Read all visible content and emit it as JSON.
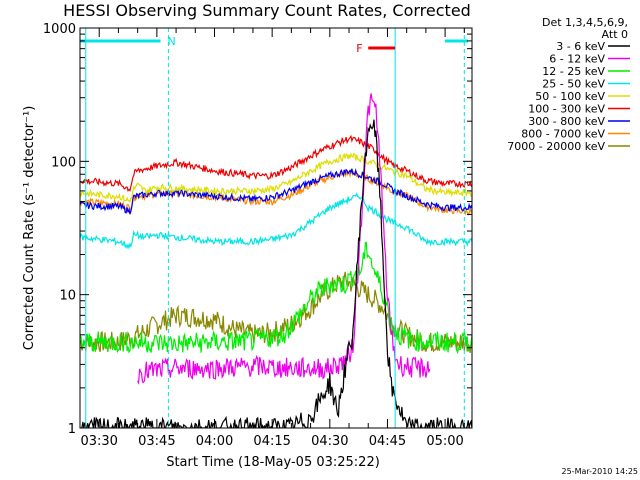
{
  "chart_data": {
    "type": "line",
    "title": "HESSI Observing Summary Count Rates, Corrected",
    "xlabel": "Start Time (18-May-05 03:25:22)",
    "ylabel": "Corrected Count Rate (s⁻¹ detector⁻¹)",
    "ylim": [
      1,
      1000
    ],
    "yscale": "log",
    "xlim_minutes": [
      -5,
      97
    ],
    "x_tick_labels": [
      "03:30",
      "03:45",
      "04:00",
      "04:15",
      "04:30",
      "04:45",
      "05:00"
    ],
    "x_ticks_minutes": [
      0,
      15,
      30,
      45,
      60,
      75,
      90
    ],
    "y_tick_labels": [
      "1",
      "10",
      "100",
      "1000"
    ],
    "y_ticks": [
      1,
      10,
      100,
      1000
    ],
    "legend_header": [
      "Det 1,3,4,5,6,9,",
      "Att 0"
    ],
    "date_stamp": "25-Mar-2010 14:25",
    "flag_N": {
      "label": "N",
      "color": "#00e5e5",
      "segments_minutes": [
        [
          -5,
          17
        ],
        [
          90,
          97
        ]
      ]
    },
    "flag_F": {
      "label": "F",
      "color": "#ee0000",
      "segment_minutes": [
        70,
        77
      ]
    },
    "vlines_minutes": [
      -3.5,
      18,
      77,
      95
    ],
    "series": [
      {
        "name": "3 - 6 keV",
        "color": "#000000",
        "x": [
          -5,
          10,
          20,
          30,
          35,
          40,
          45,
          50,
          55,
          60,
          62,
          64,
          66,
          68,
          70,
          71,
          72,
          73,
          74,
          75,
          76,
          80,
          85,
          90,
          97
        ],
        "y": [
          1,
          1,
          1,
          1,
          1,
          1,
          1,
          1,
          1.2,
          2.2,
          1.3,
          2.8,
          5,
          40,
          180,
          195,
          150,
          60,
          15,
          4,
          2,
          1,
          1,
          1,
          1
        ]
      },
      {
        "name": "6 - 12 keV",
        "color": "#ee00ee",
        "x": [
          10,
          20,
          30,
          40,
          50,
          60,
          62,
          64,
          66,
          68,
          70,
          71,
          72,
          73,
          74,
          75,
          76,
          77,
          78,
          82,
          86
        ],
        "y": [
          2.6,
          2.8,
          2.8,
          2.9,
          2.8,
          2.8,
          3,
          3.2,
          4,
          30,
          250,
          280,
          240,
          110,
          30,
          10,
          5,
          3.5,
          3,
          2.8,
          2.8
        ]
      },
      {
        "name": "12 - 25 keV",
        "color": "#00ee00",
        "x": [
          -5,
          5,
          10,
          20,
          30,
          40,
          48,
          52,
          56,
          60,
          64,
          66,
          68,
          69,
          70,
          71,
          72,
          73,
          74,
          75,
          76,
          78,
          82,
          90,
          97
        ],
        "y": [
          4.4,
          4.4,
          4.4,
          4.3,
          4.4,
          4.5,
          5,
          7,
          10,
          12,
          12,
          14,
          15,
          20,
          22,
          17,
          14,
          12,
          10,
          8,
          6,
          5,
          4.5,
          4.4,
          4.4
        ]
      },
      {
        "name": "25 - 50 keV",
        "color": "#00e5e5",
        "x": [
          -5,
          0,
          5,
          8,
          9,
          12,
          15,
          20,
          30,
          40,
          45,
          50,
          55,
          60,
          65,
          68,
          70,
          72,
          74,
          76,
          80,
          85,
          90,
          97
        ],
        "y": [
          27,
          26,
          25,
          23,
          28,
          27,
          28,
          27,
          25,
          25,
          26,
          28,
          35,
          45,
          52,
          55,
          45,
          42,
          38,
          35,
          32,
          25,
          25,
          25
        ]
      },
      {
        "name": "50 - 100 keV",
        "color": "#dddd00",
        "x": [
          -5,
          0,
          5,
          8,
          9,
          10,
          12,
          15,
          20,
          30,
          40,
          45,
          50,
          55,
          60,
          65,
          68,
          70,
          72,
          74,
          76,
          80,
          85,
          90,
          97
        ],
        "y": [
          58,
          56,
          55,
          50,
          62,
          66,
          60,
          64,
          63,
          60,
          60,
          62,
          70,
          85,
          100,
          110,
          105,
          100,
          95,
          90,
          85,
          78,
          62,
          58,
          58
        ]
      },
      {
        "name": "100 - 300 keV",
        "color": "#ee0000",
        "x": [
          -5,
          0,
          5,
          8,
          9,
          10,
          12,
          15,
          20,
          30,
          40,
          45,
          50,
          55,
          60,
          65,
          68,
          70,
          72,
          74,
          76,
          80,
          85,
          90,
          97
        ],
        "y": [
          72,
          70,
          68,
          62,
          80,
          85,
          88,
          92,
          98,
          85,
          78,
          78,
          90,
          110,
          130,
          148,
          140,
          130,
          120,
          105,
          95,
          85,
          72,
          68,
          68
        ]
      },
      {
        "name": "300 - 800 keV",
        "color": "#0000ee",
        "x": [
          -5,
          0,
          5,
          8,
          9,
          10,
          12,
          15,
          20,
          30,
          40,
          45,
          50,
          55,
          60,
          65,
          68,
          70,
          72,
          74,
          76,
          80,
          85,
          90,
          97
        ],
        "y": [
          47,
          46,
          46,
          42,
          54,
          55,
          56,
          58,
          58,
          55,
          52,
          54,
          60,
          70,
          78,
          85,
          80,
          76,
          72,
          68,
          62,
          55,
          48,
          45,
          45
        ]
      },
      {
        "name": "800 - 7000 keV",
        "color": "#ff8800",
        "x": [
          -5,
          0,
          5,
          8,
          9,
          10,
          12,
          15,
          20,
          30,
          40,
          45,
          50,
          55,
          60,
          65,
          68,
          70,
          72,
          74,
          76,
          80,
          85,
          90,
          97
        ],
        "y": [
          50,
          49,
          48,
          45,
          53,
          56,
          55,
          57,
          57,
          54,
          50,
          50,
          56,
          66,
          76,
          82,
          78,
          74,
          70,
          66,
          60,
          55,
          46,
          43,
          42
        ]
      },
      {
        "name": "7000 - 20000 keV",
        "color": "#888800",
        "x": [
          -5,
          5,
          10,
          15,
          20,
          25,
          30,
          35,
          40,
          45,
          50,
          55,
          58,
          60,
          62,
          64,
          66,
          68,
          70,
          72,
          74,
          76,
          80,
          85,
          90,
          97
        ],
        "y": [
          4.4,
          4.4,
          5,
          6,
          7,
          6.8,
          6.5,
          5.5,
          5,
          5.2,
          6,
          8,
          10,
          11,
          12,
          12.5,
          12,
          11,
          10,
          9,
          8,
          6,
          5,
          4.4,
          4.4,
          4.4
        ]
      }
    ]
  }
}
